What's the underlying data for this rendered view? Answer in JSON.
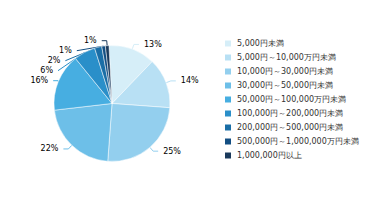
{
  "chart_data": {
    "type": "pie",
    "categories": [
      "5,000円未満",
      "5,000円～10,000万円未満",
      "10,000円～30,000円未満",
      "30,000円～50,000円未満",
      "50,000円～100,000万円未満",
      "100,000円～200,000円未満",
      "200,000円～500,000円未満",
      "500,000円～1,000,000万円未満",
      "1,000,000円以上"
    ],
    "values": [
      13,
      14,
      25,
      22,
      16,
      6,
      2,
      1,
      1
    ],
    "value_labels": [
      "13%",
      "14%",
      "25%",
      "22%",
      "16%",
      "6%",
      "2%",
      "1%",
      "1%"
    ],
    "colors": [
      "#d6eef8",
      "#b8e0f4",
      "#93cfee",
      "#6dbfe8",
      "#47aee1",
      "#2a8fc9",
      "#1a6ea6",
      "#134e82",
      "#1a3a5c"
    ],
    "data_labels": true,
    "legend": "right"
  }
}
